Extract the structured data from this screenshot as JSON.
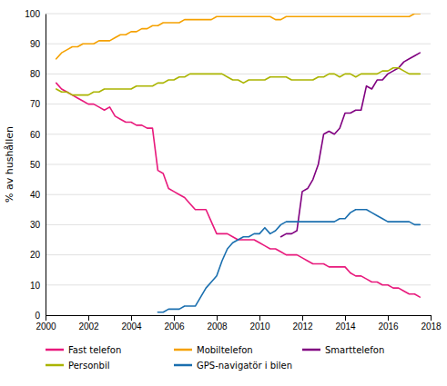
{
  "chart_data": {
    "type": "line",
    "ylabel": "% av hushållen",
    "xlim": [
      2000,
      2018
    ],
    "ylim": [
      0,
      100
    ],
    "xticks": [
      2000,
      2002,
      2004,
      2006,
      2008,
      2010,
      2012,
      2014,
      2016,
      2018
    ],
    "yticks": [
      0,
      10,
      20,
      30,
      40,
      50,
      60,
      70,
      80,
      90,
      100
    ],
    "grid": true,
    "legend": "bottom",
    "series": [
      {
        "name": "Fast telefon",
        "color": "#e8197c",
        "x": [
          2000.5,
          2000.75,
          2001.0,
          2001.25,
          2001.5,
          2001.75,
          2002.0,
          2002.25,
          2002.5,
          2002.75,
          2003.0,
          2003.25,
          2003.5,
          2003.75,
          2004.0,
          2004.25,
          2004.5,
          2004.75,
          2005.0,
          2005.25,
          2005.5,
          2005.75,
          2006.0,
          2006.25,
          2006.5,
          2006.75,
          2007.0,
          2007.25,
          2007.5,
          2007.75,
          2008.0,
          2008.25,
          2008.5,
          2008.75,
          2009.0,
          2009.25,
          2009.5,
          2009.75,
          2010.0,
          2010.25,
          2010.5,
          2010.75,
          2011.0,
          2011.25,
          2011.5,
          2011.75,
          2012.0,
          2012.25,
          2012.5,
          2012.75,
          2013.0,
          2013.25,
          2013.5,
          2013.75,
          2014.0,
          2014.25,
          2014.5,
          2014.75,
          2015.0,
          2015.25,
          2015.5,
          2015.75,
          2016.0,
          2016.25,
          2016.5,
          2016.75,
          2017.0,
          2017.25,
          2017.5
        ],
        "values": [
          77,
          75,
          74,
          73,
          72,
          71,
          70,
          70,
          69,
          68,
          69,
          66,
          65,
          64,
          64,
          63,
          63,
          62,
          62,
          48,
          47,
          42,
          41,
          40,
          39,
          37,
          35,
          35,
          35,
          31,
          27,
          27,
          27,
          26,
          25,
          25,
          25,
          25,
          24,
          23,
          22,
          22,
          21,
          20,
          20,
          20,
          19,
          18,
          17,
          17,
          17,
          16,
          16,
          16,
          16,
          14,
          13,
          13,
          12,
          11,
          11,
          10,
          10,
          9,
          9,
          8,
          7,
          7,
          6
        ]
      },
      {
        "name": "Mobiltelefon",
        "color": "#f5a100",
        "x": [
          2000.5,
          2000.75,
          2001.0,
          2001.25,
          2001.5,
          2001.75,
          2002.0,
          2002.25,
          2002.5,
          2002.75,
          2003.0,
          2003.25,
          2003.5,
          2003.75,
          2004.0,
          2004.25,
          2004.5,
          2004.75,
          2005.0,
          2005.25,
          2005.5,
          2005.75,
          2006.0,
          2006.25,
          2006.5,
          2006.75,
          2007.0,
          2007.25,
          2007.5,
          2007.75,
          2008.0,
          2008.25,
          2008.5,
          2008.75,
          2009.0,
          2009.25,
          2009.5,
          2009.75,
          2010.0,
          2010.25,
          2010.5,
          2010.75,
          2011.0,
          2011.25,
          2011.5,
          2011.75,
          2012.0,
          2012.25,
          2012.5,
          2012.75,
          2013.0,
          2013.25,
          2013.5,
          2013.75,
          2014.0,
          2014.25,
          2014.5,
          2014.75,
          2015.0,
          2015.25,
          2015.5,
          2015.75,
          2016.0,
          2016.25,
          2016.5,
          2016.75,
          2017.0,
          2017.25,
          2017.5
        ],
        "values": [
          85,
          87,
          88,
          89,
          89,
          90,
          90,
          90,
          91,
          91,
          91,
          92,
          93,
          93,
          94,
          94,
          95,
          95,
          96,
          96,
          97,
          97,
          97,
          97,
          98,
          98,
          98,
          98,
          98,
          98,
          99,
          99,
          99,
          99,
          99,
          99,
          99,
          99,
          99,
          99,
          99,
          98,
          98,
          99,
          99,
          99,
          99,
          99,
          99,
          99,
          99,
          99,
          99,
          99,
          99,
          99,
          99,
          99,
          99,
          99,
          99,
          99,
          99,
          99,
          99,
          99,
          99,
          100,
          100
        ]
      },
      {
        "name": "Smarttelefon",
        "color": "#800080",
        "x": [
          2011.0,
          2011.25,
          2011.5,
          2011.75,
          2012.0,
          2012.25,
          2012.5,
          2012.75,
          2013.0,
          2013.25,
          2013.5,
          2013.75,
          2014.0,
          2014.25,
          2014.5,
          2014.75,
          2015.0,
          2015.25,
          2015.5,
          2015.75,
          2016.0,
          2016.25,
          2016.5,
          2016.75,
          2017.0,
          2017.25,
          2017.5
        ],
        "values": [
          26,
          27,
          27,
          28,
          41,
          42,
          45,
          50,
          60,
          61,
          60,
          62,
          67,
          67,
          68,
          68,
          76,
          75,
          78,
          78,
          80,
          81,
          82,
          84,
          85,
          86,
          87
        ]
      },
      {
        "name": "Personbil",
        "color": "#aab400",
        "x": [
          2000.5,
          2000.75,
          2001.0,
          2001.25,
          2001.5,
          2001.75,
          2002.0,
          2002.25,
          2002.5,
          2002.75,
          2003.0,
          2003.25,
          2003.5,
          2003.75,
          2004.0,
          2004.25,
          2004.5,
          2004.75,
          2005.0,
          2005.25,
          2005.5,
          2005.75,
          2006.0,
          2006.25,
          2006.5,
          2006.75,
          2007.0,
          2007.25,
          2007.5,
          2007.75,
          2008.0,
          2008.25,
          2008.5,
          2008.75,
          2009.0,
          2009.25,
          2009.5,
          2009.75,
          2010.0,
          2010.25,
          2010.5,
          2010.75,
          2011.0,
          2011.25,
          2011.5,
          2011.75,
          2012.0,
          2012.25,
          2012.5,
          2012.75,
          2013.0,
          2013.25,
          2013.5,
          2013.75,
          2014.0,
          2014.25,
          2014.5,
          2014.75,
          2015.0,
          2015.25,
          2015.5,
          2015.75,
          2016.0,
          2016.25,
          2016.5,
          2016.75,
          2017.0,
          2017.25,
          2017.5
        ],
        "values": [
          75,
          74,
          74,
          73,
          73,
          73,
          73,
          74,
          74,
          75,
          75,
          75,
          75,
          75,
          75,
          76,
          76,
          76,
          76,
          77,
          77,
          78,
          78,
          79,
          79,
          80,
          80,
          80,
          80,
          80,
          80,
          80,
          79,
          78,
          78,
          77,
          78,
          78,
          78,
          78,
          79,
          79,
          79,
          79,
          78,
          78,
          78,
          78,
          78,
          79,
          79,
          80,
          80,
          79,
          80,
          80,
          79,
          80,
          80,
          80,
          80,
          81,
          81,
          82,
          82,
          81,
          80,
          80,
          80
        ]
      },
      {
        "name": "GPS-navigatör i bilen",
        "color": "#1a6faf",
        "x": [
          2005.25,
          2005.5,
          2005.75,
          2006.0,
          2006.25,
          2006.5,
          2006.75,
          2007.0,
          2007.25,
          2007.5,
          2007.75,
          2008.0,
          2008.25,
          2008.5,
          2008.75,
          2009.0,
          2009.25,
          2009.5,
          2009.75,
          2010.0,
          2010.25,
          2010.5,
          2010.75,
          2011.0,
          2011.25,
          2011.5,
          2011.75,
          2012.0,
          2012.25,
          2012.5,
          2012.75,
          2013.0,
          2013.25,
          2013.5,
          2013.75,
          2014.0,
          2014.25,
          2014.5,
          2014.75,
          2015.0,
          2015.25,
          2015.5,
          2015.75,
          2016.0,
          2016.25,
          2016.5,
          2016.75,
          2017.0,
          2017.25,
          2017.5
        ],
        "values": [
          1,
          1,
          2,
          2,
          2,
          3,
          3,
          3,
          6,
          9,
          11,
          13,
          18,
          22,
          24,
          25,
          26,
          26,
          27,
          27,
          29,
          27,
          28,
          30,
          31,
          31,
          31,
          31,
          31,
          31,
          31,
          31,
          31,
          31,
          32,
          32,
          34,
          35,
          35,
          35,
          34,
          33,
          32,
          31,
          31,
          31,
          31,
          31,
          30,
          30
        ]
      }
    ]
  }
}
